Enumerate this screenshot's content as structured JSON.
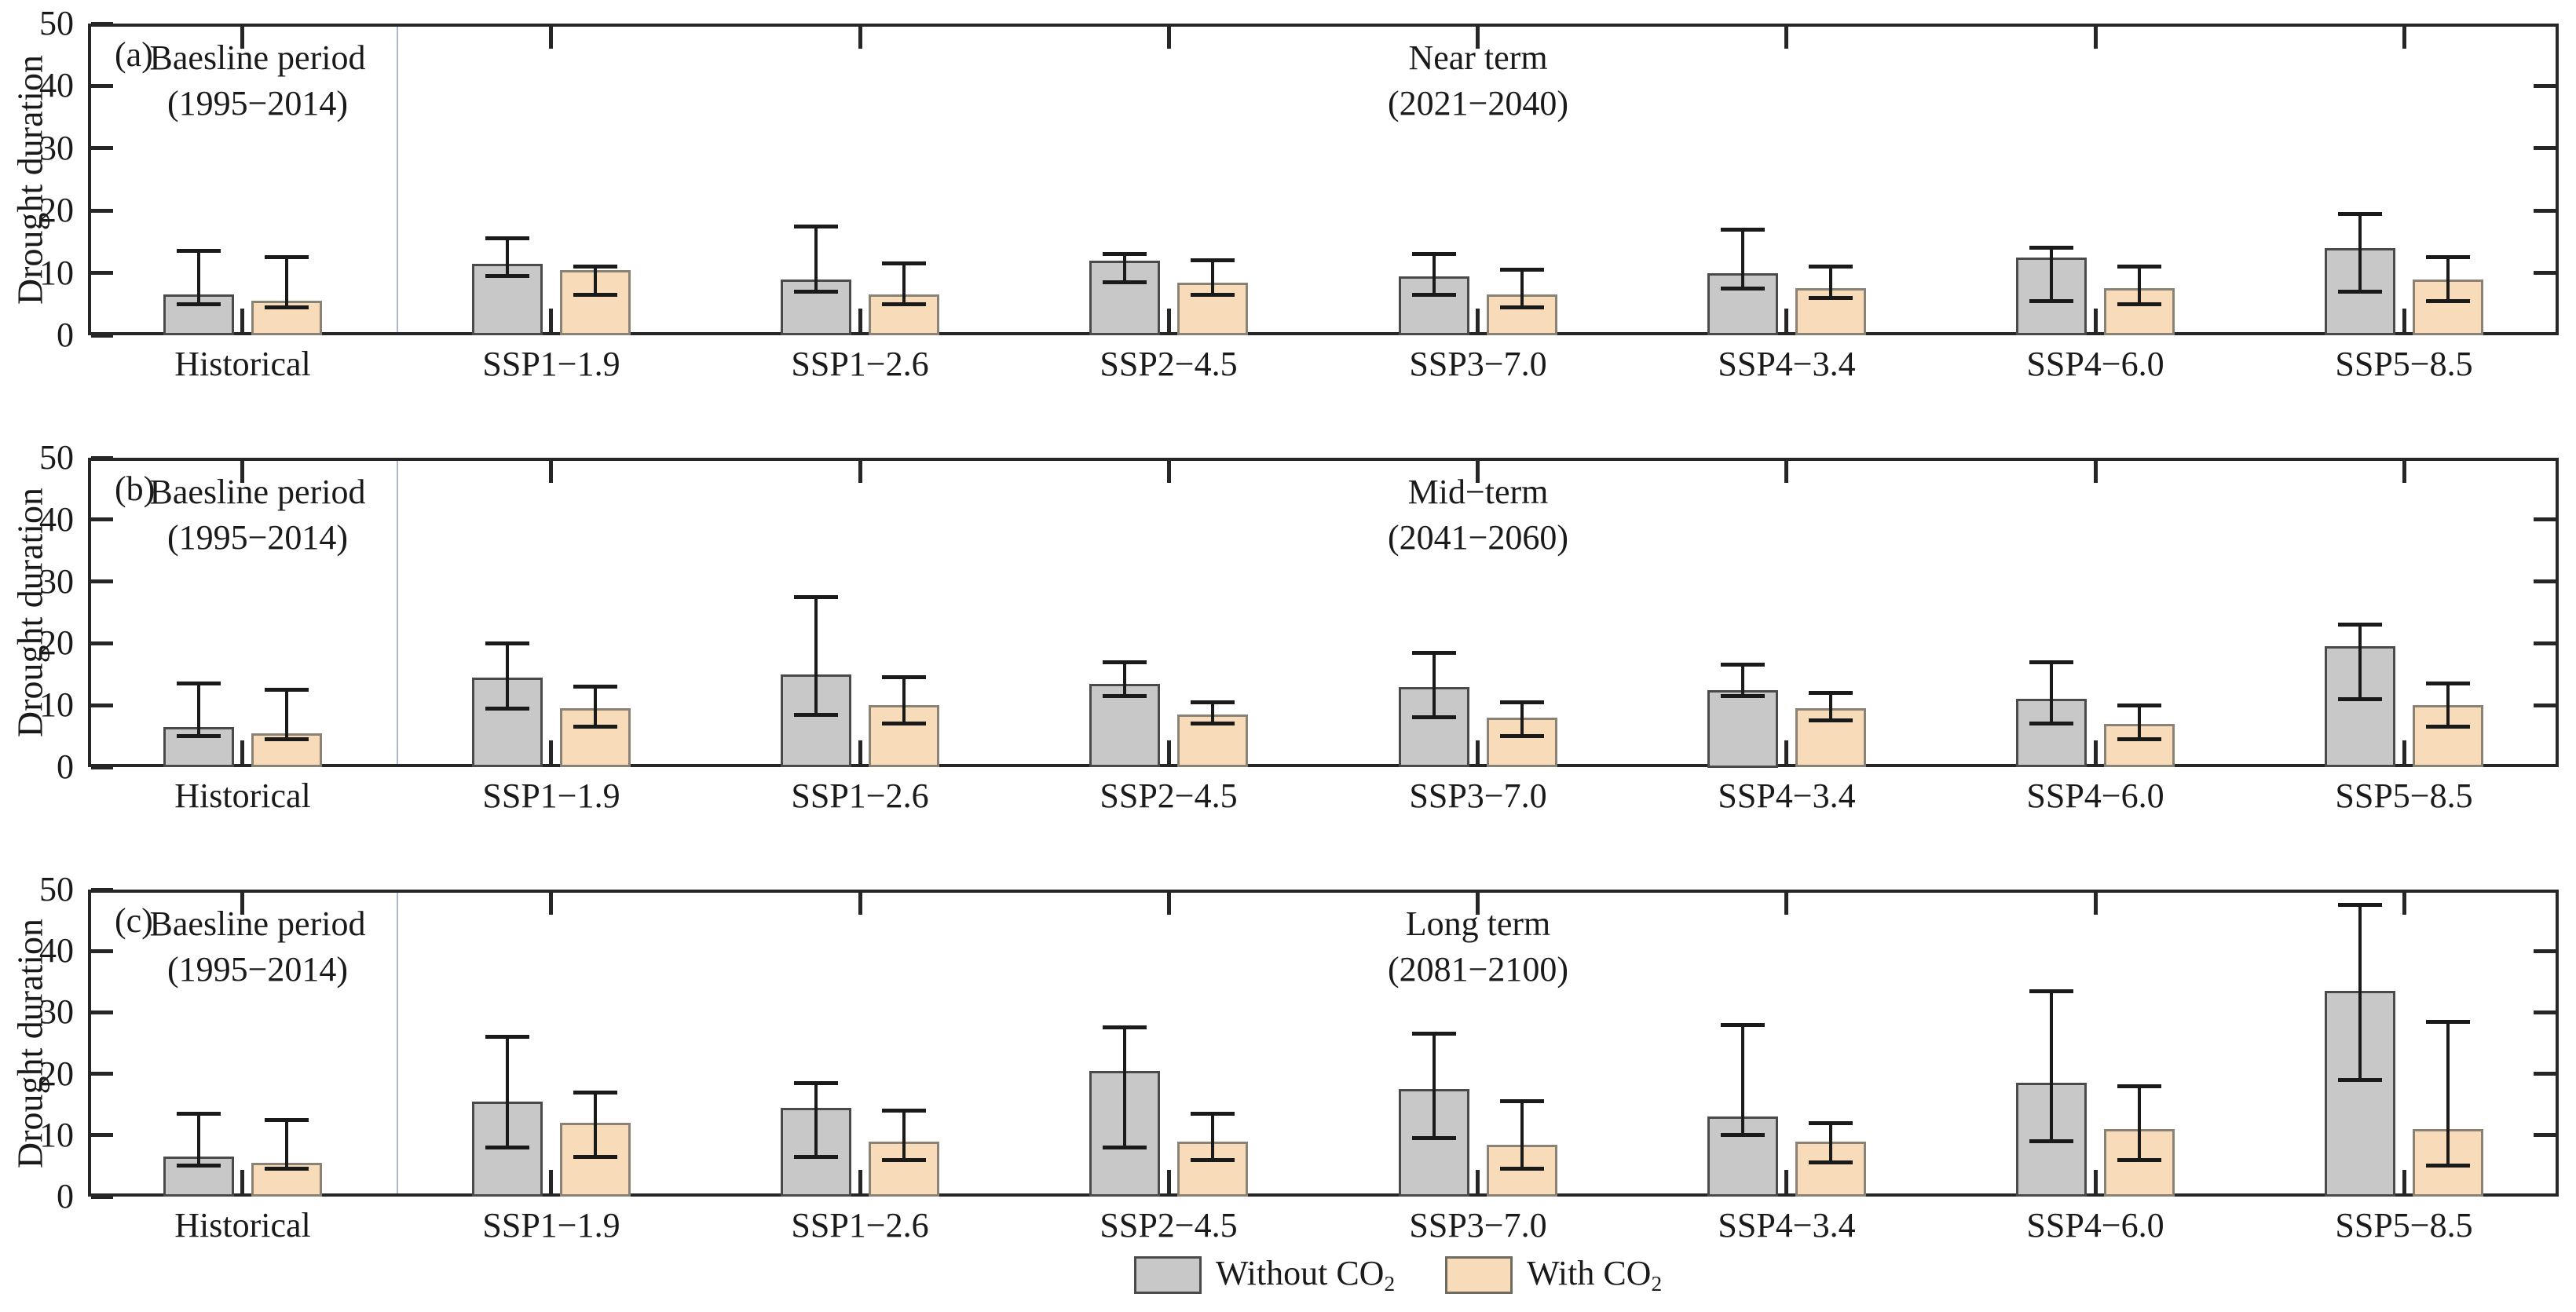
{
  "figure": {
    "background": "#ffffff"
  },
  "chart_data": {
    "type": "bar",
    "title": "",
    "xlabel": "",
    "ylabel": "Drought duration",
    "ylim": [
      0,
      50
    ],
    "yticks": [
      0,
      10,
      20,
      30,
      40,
      50
    ],
    "grid": false,
    "legend_position": "bottom-center",
    "categories": [
      "Historical",
      "SSP1−1.9",
      "SSP1−2.6",
      "SSP2−4.5",
      "SSP3−7.0",
      "SSP4−3.4",
      "SSP4−6.0",
      "SSP5−8.5"
    ],
    "baseline_annotation": [
      "Baesline period",
      "(1995−2014)"
    ],
    "legend": [
      {
        "name": "Without CO2",
        "label_prefix": "Without CO",
        "subscript": "2",
        "fill": "#c8c8c8",
        "border": "#4a4a4a"
      },
      {
        "name": "With CO2",
        "label_prefix": "With CO",
        "subscript": "2",
        "fill": "#f8dcba",
        "border": "#8a8274"
      }
    ],
    "colors": {
      "axis": "#262626",
      "text": "#1a1a1a",
      "divider": "#aab6d3",
      "error_bar": "#1a1a1a"
    },
    "panels": [
      {
        "label": "(a)",
        "term": [
          "Near term",
          "(2021−2040)"
        ],
        "series": [
          {
            "name": "Without CO2",
            "values": [
              6.5,
              11.5,
              9,
              12,
              9.5,
              10,
              12.5,
              14
            ],
            "whisker_low": [
              5,
              9.5,
              7,
              8.5,
              6.5,
              7.5,
              5.5,
              7
            ],
            "whisker_high": [
              13.5,
              15.5,
              17.5,
              13,
              13,
              17,
              14,
              19.5
            ]
          },
          {
            "name": "With CO2",
            "values": [
              5.5,
              10.5,
              6.5,
              8.5,
              6.5,
              7.5,
              7.5,
              9
            ],
            "whisker_low": [
              4.5,
              6.5,
              5,
              6.5,
              4.5,
              6,
              5,
              5.5
            ],
            "whisker_high": [
              12.5,
              11,
              11.5,
              12,
              10.5,
              11,
              11,
              12.5
            ]
          }
        ]
      },
      {
        "label": "(b)",
        "term": [
          "Mid−term",
          "(2041−2060)"
        ],
        "series": [
          {
            "name": "Without CO2",
            "values": [
              6.5,
              14.5,
              15,
              13.5,
              13,
              12.5,
              11,
              19.5
            ],
            "whisker_low": [
              5,
              9.5,
              8.5,
              11.5,
              8,
              11.5,
              7,
              11
            ],
            "whisker_high": [
              13.5,
              20,
              27.5,
              17,
              18.5,
              16.5,
              17,
              23
            ]
          },
          {
            "name": "With CO2",
            "values": [
              5.5,
              9.5,
              10,
              8.5,
              8,
              9.5,
              7,
              10
            ],
            "whisker_low": [
              4.5,
              6.5,
              7,
              7,
              5,
              7.5,
              4.5,
              6.5
            ],
            "whisker_high": [
              12.5,
              13,
              14.5,
              10.5,
              10.5,
              12,
              10,
              13.5
            ]
          }
        ]
      },
      {
        "label": "(c)",
        "term": [
          "Long term",
          "(2081−2100)"
        ],
        "series": [
          {
            "name": "Without CO2",
            "values": [
              6.5,
              15.5,
              14.5,
              20.5,
              17.5,
              13,
              18.5,
              33.5
            ],
            "whisker_low": [
              5,
              8,
              6.5,
              8,
              9.5,
              10,
              9,
              19
            ],
            "whisker_high": [
              13.5,
              26,
              18.5,
              27.5,
              26.5,
              28,
              33.5,
              47.5
            ]
          },
          {
            "name": "With CO2",
            "values": [
              5.5,
              12,
              9,
              9,
              8.5,
              9,
              11,
              11
            ],
            "whisker_low": [
              4.5,
              6.5,
              6,
              6,
              4.5,
              5.5,
              6,
              5
            ],
            "whisker_high": [
              12.5,
              17,
              14,
              13.5,
              15.5,
              12,
              18,
              28.5
            ]
          }
        ]
      }
    ]
  }
}
